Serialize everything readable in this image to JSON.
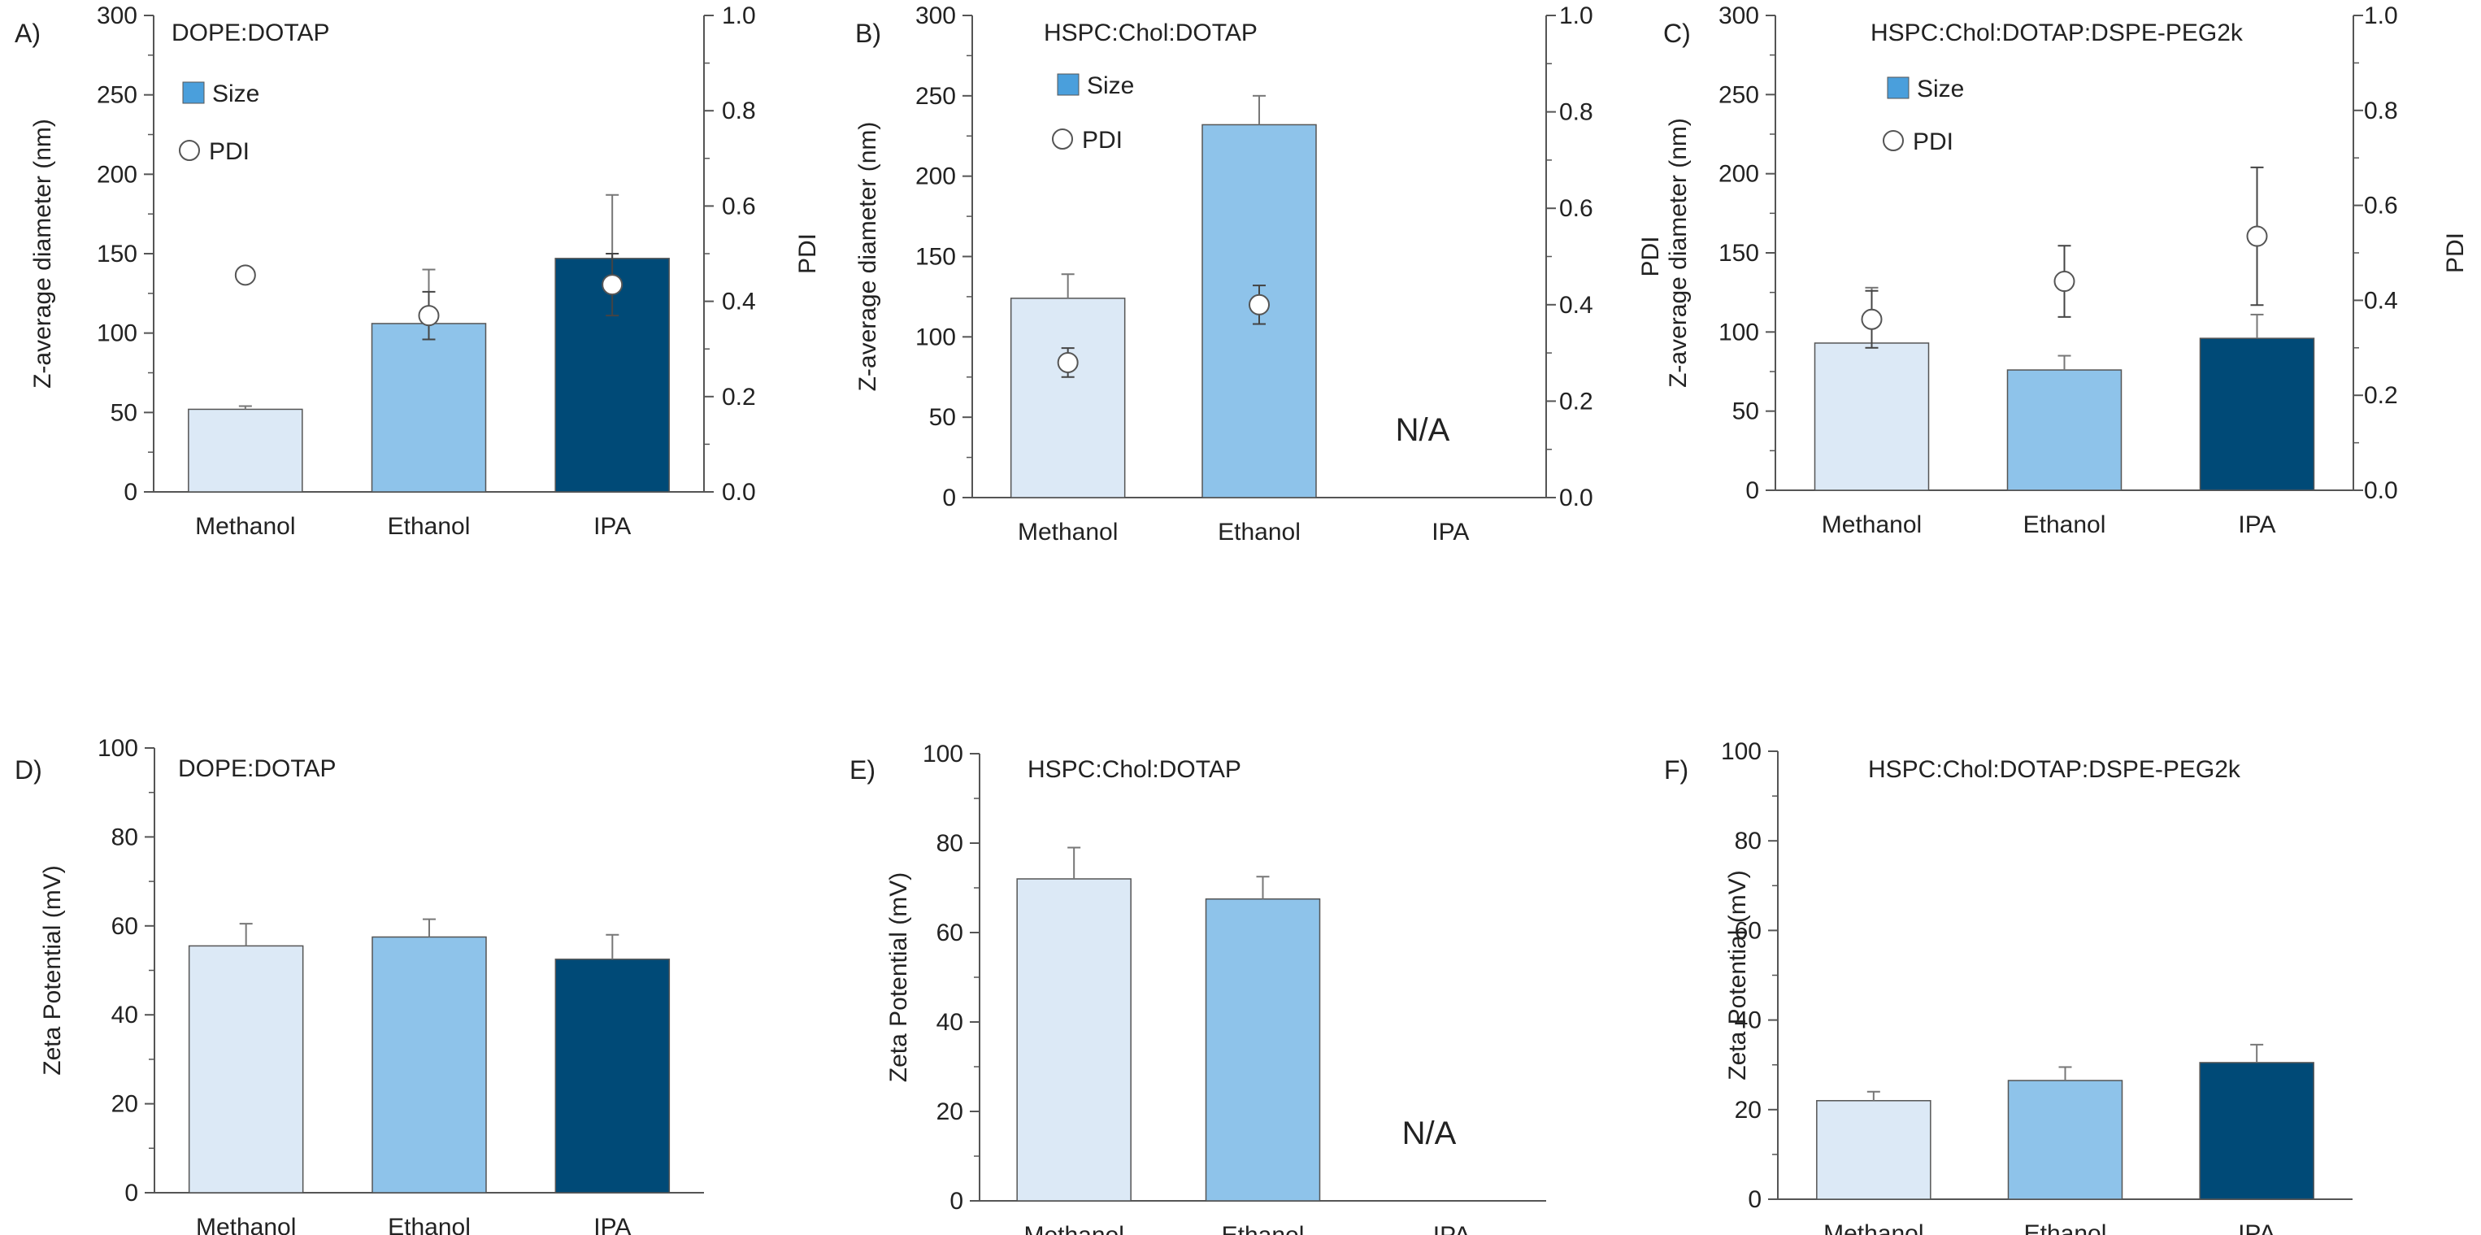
{
  "colors": {
    "methanol": "#dce9f6",
    "ethanol": "#8ec3ea",
    "ipa": "#004a77",
    "bar_edge": "#555555",
    "axis": "#555555",
    "errorbar": "#777777",
    "pdi_marker_fill": "#ffffff"
  },
  "chart_data": [
    {
      "type": "bar",
      "panel": "A)",
      "title": "DOPE:DOTAP",
      "categories": [
        "Methanol",
        "Ethanol",
        "IPA"
      ],
      "ylabel": "Z-average diameter (nm)",
      "ylim": [
        0,
        300
      ],
      "yticks": [
        "0",
        "50",
        "100",
        "150",
        "200",
        "250",
        "300"
      ],
      "y2label": "PDI",
      "y2lim": [
        0,
        1
      ],
      "y2ticks": [
        "0.0",
        "0.2",
        "0.4",
        "0.6",
        "0.8",
        "1.0"
      ],
      "legend": {
        "size": "Size",
        "pdi": "PDI"
      },
      "values": [
        52,
        106,
        147
      ],
      "errors": [
        2,
        34,
        40
      ],
      "pdi": [
        0.455,
        0.37,
        0.435
      ],
      "pdi_errors": [
        0,
        0.05,
        0.065
      ],
      "pdi_filled": [
        false,
        false,
        true
      ],
      "na_label": ""
    },
    {
      "type": "bar",
      "panel": "B)",
      "title": "HSPC:Chol:DOTAP",
      "categories": [
        "Methanol",
        "Ethanol",
        "IPA"
      ],
      "ylabel": "Z-average diameter (nm)",
      "ylim": [
        0,
        300
      ],
      "yticks": [
        "0",
        "50",
        "100",
        "150",
        "200",
        "250",
        "300"
      ],
      "y2label": "PDI",
      "y2lim": [
        0,
        1
      ],
      "y2ticks": [
        "0.0",
        "0.2",
        "0.4",
        "0.6",
        "0.8",
        "1.0"
      ],
      "legend": {
        "size": "Size",
        "pdi": "PDI"
      },
      "values": [
        124,
        232,
        null
      ],
      "errors": [
        15,
        18,
        null
      ],
      "pdi": [
        0.28,
        0.4,
        null
      ],
      "pdi_errors": [
        0.03,
        0.04,
        null
      ],
      "pdi_filled": [
        false,
        false,
        false
      ],
      "na_label": "N/A"
    },
    {
      "type": "bar",
      "panel": "C)",
      "title": "HSPC:Chol:DOTAP:DSPE-PEG2k",
      "categories": [
        "Methanol",
        "Ethanol",
        "IPA"
      ],
      "ylabel": "Z-average diameter (nm)",
      "ylim": [
        0,
        300
      ],
      "yticks": [
        "0",
        "50",
        "100",
        "150",
        "200",
        "250",
        "300"
      ],
      "y2label": "PDI",
      "y2lim": [
        0,
        1
      ],
      "y2ticks": [
        "0.0",
        "0.2",
        "0.4",
        "0.6",
        "0.8",
        "1.0"
      ],
      "legend": {
        "size": "Size",
        "pdi": "PDI"
      },
      "values": [
        93,
        76,
        96
      ],
      "errors": [
        35,
        9,
        15
      ],
      "pdi": [
        0.36,
        0.44,
        0.535
      ],
      "pdi_errors": [
        0.06,
        0.075,
        0.145
      ],
      "pdi_filled": [
        false,
        false,
        false
      ],
      "na_label": ""
    },
    {
      "type": "bar",
      "panel": "D)",
      "title": "DOPE:DOTAP",
      "categories": [
        "Methanol",
        "Ethanol",
        "IPA"
      ],
      "ylabel": "Zeta Potential (mV)",
      "ylim": [
        0,
        100
      ],
      "yticks": [
        "0",
        "20",
        "40",
        "60",
        "80",
        "100"
      ],
      "values": [
        55.5,
        57.5,
        52.5
      ],
      "errors": [
        5,
        4,
        5.5
      ],
      "na_label": ""
    },
    {
      "type": "bar",
      "panel": "E)",
      "title": "HSPC:Chol:DOTAP",
      "categories": [
        "Methanol",
        "Ethanol",
        "IPA"
      ],
      "ylabel": "Zeta Potential (mV)",
      "ylim": [
        0,
        100
      ],
      "yticks": [
        "0",
        "20",
        "40",
        "60",
        "80",
        "100"
      ],
      "values": [
        72,
        67.5,
        null
      ],
      "errors": [
        7,
        5,
        null
      ],
      "na_label": "N/A"
    },
    {
      "type": "bar",
      "panel": "F)",
      "title": "HSPC:Chol:DOTAP:DSPE-PEG2k",
      "categories": [
        "Methanol",
        "Ethanol",
        "IPA"
      ],
      "ylabel": "Zeta Potential (mV)",
      "ylim": [
        0,
        100
      ],
      "yticks": [
        "0",
        "20",
        "40",
        "60",
        "80",
        "100"
      ],
      "values": [
        22,
        26.5,
        30.5
      ],
      "errors": [
        2,
        3,
        4
      ],
      "na_label": ""
    }
  ]
}
